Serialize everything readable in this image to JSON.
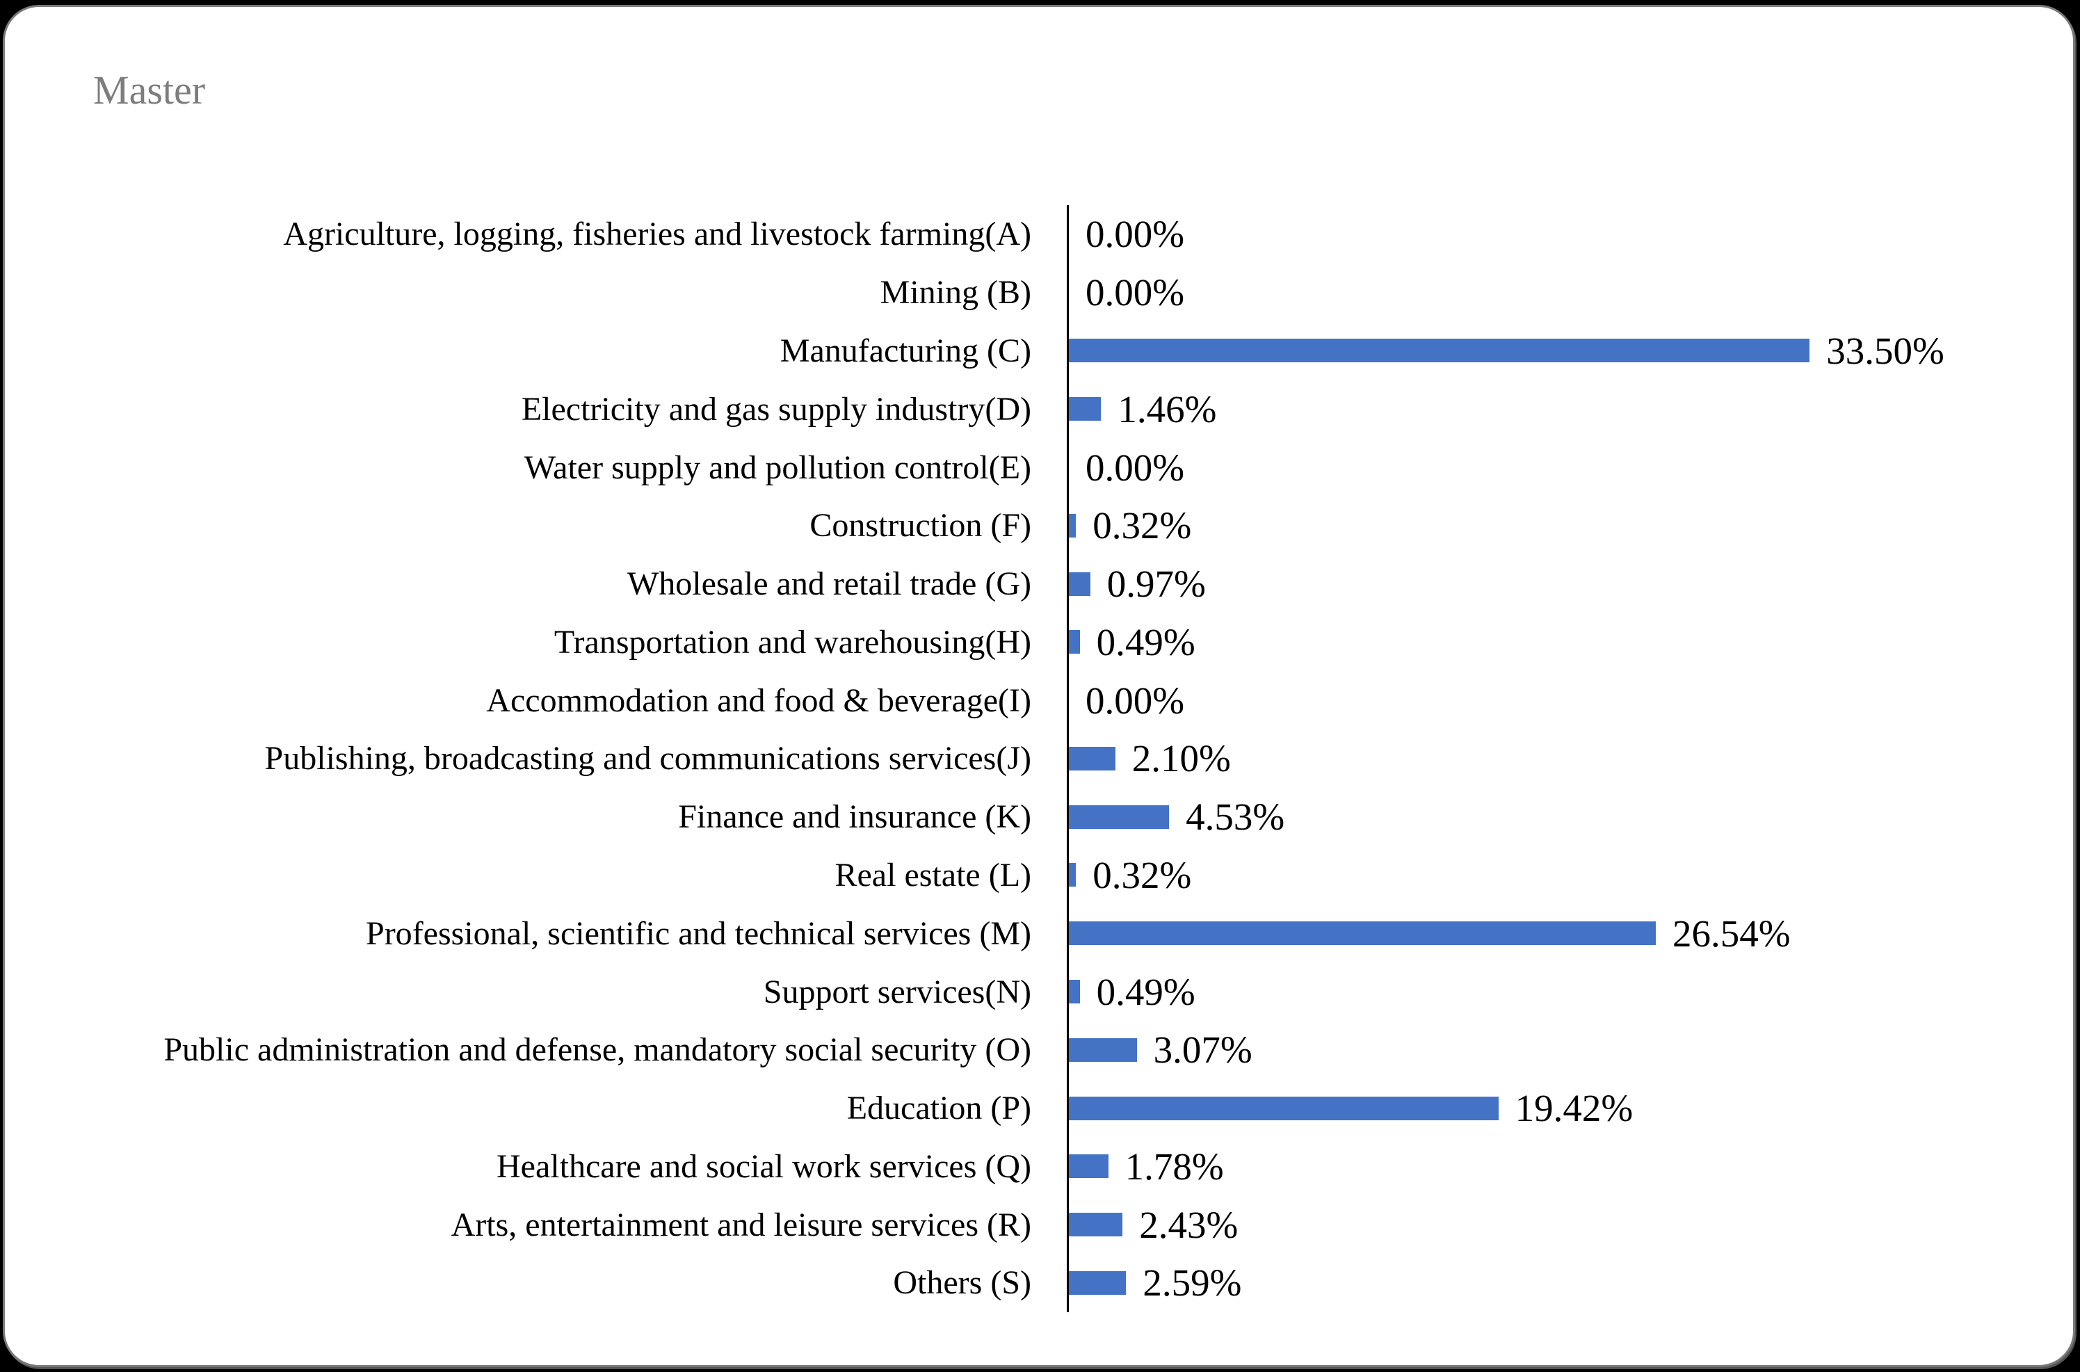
{
  "title": "Master",
  "colors": {
    "background": "#000000",
    "card_background": "#ffffff",
    "card_border": "#7a7a7a",
    "title_text": "#7d7d7d",
    "label_text": "#000000",
    "bar_fill": "#4472c4",
    "axis_line": "#000000"
  },
  "chart_data": {
    "type": "bar",
    "orientation": "horizontal",
    "title": "Master",
    "xlabel": "",
    "ylabel": "",
    "xlim": [
      0,
      44
    ],
    "grid": false,
    "legend": false,
    "data_labels": true,
    "categories": [
      "Agriculture, logging, fisheries and livestock farming(A)",
      "Mining (B)",
      "Manufacturing (C)",
      "Electricity and gas supply industry(D)",
      "Water supply and pollution control(E)",
      "Construction (F)",
      "Wholesale and retail trade (G)",
      "Transportation and warehousing(H)",
      "Accommodation and food & beverage(I)",
      "Publishing, broadcasting and communications services(J)",
      "Finance and insurance (K)",
      "Real estate (L)",
      "Professional, scientific and technical services (M)",
      "Support services(N)",
      "Public administration and defense, mandatory social security (O)",
      "Education (P)",
      "Healthcare and social work services (Q)",
      "Arts, entertainment and leisure services (R)",
      "Others (S)"
    ],
    "values": [
      0.0,
      0.0,
      33.5,
      1.46,
      0.0,
      0.32,
      0.97,
      0.49,
      0.0,
      2.1,
      4.53,
      0.32,
      26.54,
      0.49,
      3.07,
      19.42,
      1.78,
      2.43,
      2.59
    ],
    "value_labels": [
      "0.00%",
      "0.00%",
      "33.50%",
      "1.46%",
      "0.00%",
      "0.32%",
      "0.97%",
      "0.49%",
      "0.00%",
      "2.10%",
      "4.53%",
      "0.32%",
      "26.54%",
      "0.49%",
      "3.07%",
      "19.42%",
      "1.78%",
      "2.43%",
      "2.59%"
    ]
  }
}
